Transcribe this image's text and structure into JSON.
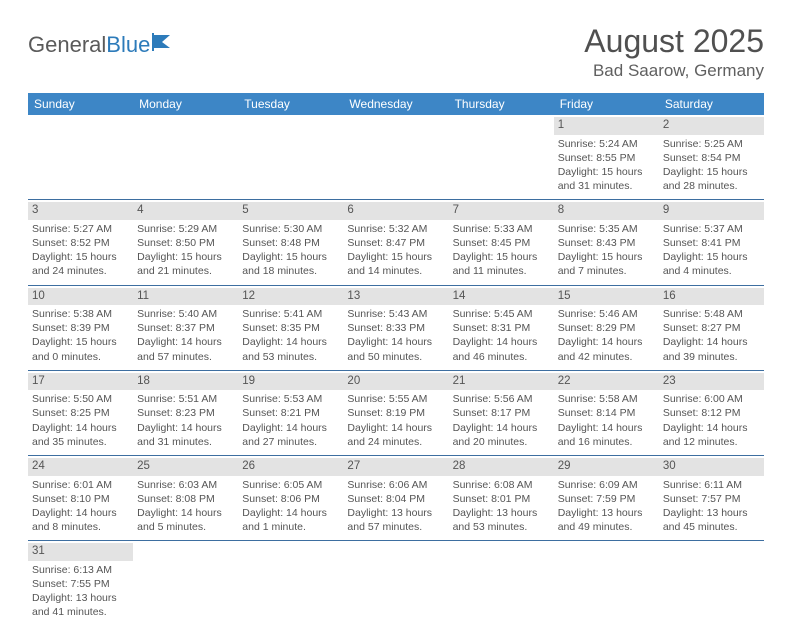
{
  "brand": {
    "part1": "General",
    "part2": "Blue"
  },
  "title": "August 2025",
  "location": "Bad Saarow, Germany",
  "colors": {
    "header_bg": "#3d86c6",
    "header_text": "#ffffff",
    "daynum_bg": "#e3e3e3",
    "row_border": "#3d6ea0",
    "text": "#555555"
  },
  "weekdays": [
    "Sunday",
    "Monday",
    "Tuesday",
    "Wednesday",
    "Thursday",
    "Friday",
    "Saturday"
  ],
  "weeks": [
    [
      null,
      null,
      null,
      null,
      null,
      {
        "n": "1",
        "sr": "5:24 AM",
        "ss": "8:55 PM",
        "dl": "15 hours and 31 minutes."
      },
      {
        "n": "2",
        "sr": "5:25 AM",
        "ss": "8:54 PM",
        "dl": "15 hours and 28 minutes."
      }
    ],
    [
      {
        "n": "3",
        "sr": "5:27 AM",
        "ss": "8:52 PM",
        "dl": "15 hours and 24 minutes."
      },
      {
        "n": "4",
        "sr": "5:29 AM",
        "ss": "8:50 PM",
        "dl": "15 hours and 21 minutes."
      },
      {
        "n": "5",
        "sr": "5:30 AM",
        "ss": "8:48 PM",
        "dl": "15 hours and 18 minutes."
      },
      {
        "n": "6",
        "sr": "5:32 AM",
        "ss": "8:47 PM",
        "dl": "15 hours and 14 minutes."
      },
      {
        "n": "7",
        "sr": "5:33 AM",
        "ss": "8:45 PM",
        "dl": "15 hours and 11 minutes."
      },
      {
        "n": "8",
        "sr": "5:35 AM",
        "ss": "8:43 PM",
        "dl": "15 hours and 7 minutes."
      },
      {
        "n": "9",
        "sr": "5:37 AM",
        "ss": "8:41 PM",
        "dl": "15 hours and 4 minutes."
      }
    ],
    [
      {
        "n": "10",
        "sr": "5:38 AM",
        "ss": "8:39 PM",
        "dl": "15 hours and 0 minutes."
      },
      {
        "n": "11",
        "sr": "5:40 AM",
        "ss": "8:37 PM",
        "dl": "14 hours and 57 minutes."
      },
      {
        "n": "12",
        "sr": "5:41 AM",
        "ss": "8:35 PM",
        "dl": "14 hours and 53 minutes."
      },
      {
        "n": "13",
        "sr": "5:43 AM",
        "ss": "8:33 PM",
        "dl": "14 hours and 50 minutes."
      },
      {
        "n": "14",
        "sr": "5:45 AM",
        "ss": "8:31 PM",
        "dl": "14 hours and 46 minutes."
      },
      {
        "n": "15",
        "sr": "5:46 AM",
        "ss": "8:29 PM",
        "dl": "14 hours and 42 minutes."
      },
      {
        "n": "16",
        "sr": "5:48 AM",
        "ss": "8:27 PM",
        "dl": "14 hours and 39 minutes."
      }
    ],
    [
      {
        "n": "17",
        "sr": "5:50 AM",
        "ss": "8:25 PM",
        "dl": "14 hours and 35 minutes."
      },
      {
        "n": "18",
        "sr": "5:51 AM",
        "ss": "8:23 PM",
        "dl": "14 hours and 31 minutes."
      },
      {
        "n": "19",
        "sr": "5:53 AM",
        "ss": "8:21 PM",
        "dl": "14 hours and 27 minutes."
      },
      {
        "n": "20",
        "sr": "5:55 AM",
        "ss": "8:19 PM",
        "dl": "14 hours and 24 minutes."
      },
      {
        "n": "21",
        "sr": "5:56 AM",
        "ss": "8:17 PM",
        "dl": "14 hours and 20 minutes."
      },
      {
        "n": "22",
        "sr": "5:58 AM",
        "ss": "8:14 PM",
        "dl": "14 hours and 16 minutes."
      },
      {
        "n": "23",
        "sr": "6:00 AM",
        "ss": "8:12 PM",
        "dl": "14 hours and 12 minutes."
      }
    ],
    [
      {
        "n": "24",
        "sr": "6:01 AM",
        "ss": "8:10 PM",
        "dl": "14 hours and 8 minutes."
      },
      {
        "n": "25",
        "sr": "6:03 AM",
        "ss": "8:08 PM",
        "dl": "14 hours and 5 minutes."
      },
      {
        "n": "26",
        "sr": "6:05 AM",
        "ss": "8:06 PM",
        "dl": "14 hours and 1 minute."
      },
      {
        "n": "27",
        "sr": "6:06 AM",
        "ss": "8:04 PM",
        "dl": "13 hours and 57 minutes."
      },
      {
        "n": "28",
        "sr": "6:08 AM",
        "ss": "8:01 PM",
        "dl": "13 hours and 53 minutes."
      },
      {
        "n": "29",
        "sr": "6:09 AM",
        "ss": "7:59 PM",
        "dl": "13 hours and 49 minutes."
      },
      {
        "n": "30",
        "sr": "6:11 AM",
        "ss": "7:57 PM",
        "dl": "13 hours and 45 minutes."
      }
    ],
    [
      {
        "n": "31",
        "sr": "6:13 AM",
        "ss": "7:55 PM",
        "dl": "13 hours and 41 minutes."
      },
      null,
      null,
      null,
      null,
      null,
      null
    ]
  ],
  "labels": {
    "sunrise": "Sunrise:",
    "sunset": "Sunset:",
    "daylight": "Daylight:"
  }
}
